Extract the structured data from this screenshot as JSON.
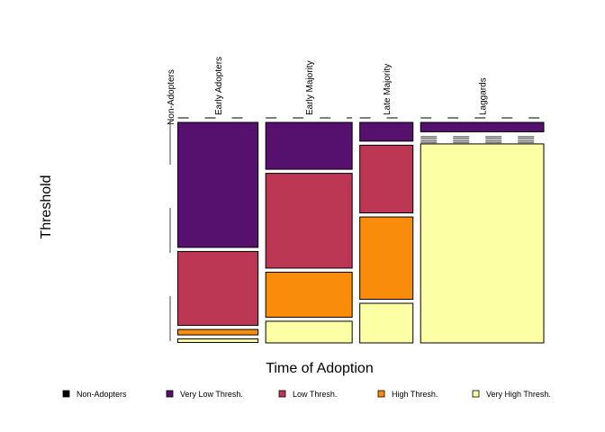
{
  "chart_data": {
    "type": "mosaic",
    "title": "",
    "xlabel": "Time of Adoption",
    "ylabel": "Threshold",
    "categories": [
      "Non-Adopters",
      "Early Adopters",
      "Early Majority",
      "Late Majority",
      "Laggards"
    ],
    "column_shares": [
      0.0,
      0.234,
      0.252,
      0.155,
      0.359
    ],
    "series": [
      {
        "name": "Non-Adopters",
        "color": "#000000",
        "values": [
          1.0,
          0.0,
          0.0,
          0.0,
          0.0
        ]
      },
      {
        "name": "Very Low Thresh.",
        "color": "#56106E",
        "values": [
          0.0,
          0.6,
          0.225,
          0.09,
          0.045
        ]
      },
      {
        "name": "Low Thresh.",
        "color": "#BB3754",
        "values": [
          0.0,
          0.355,
          0.455,
          0.325,
          0.0
        ]
      },
      {
        "name": "High Thresh.",
        "color": "#F98C0A",
        "values": [
          0.0,
          0.026,
          0.216,
          0.395,
          0.0
        ]
      },
      {
        "name": "Very High Thresh.",
        "color": "#FCFFA4",
        "values": [
          0.0,
          0.017,
          0.104,
          0.19,
          0.955
        ]
      }
    ],
    "legend_position": "bottom",
    "grid": false
  }
}
